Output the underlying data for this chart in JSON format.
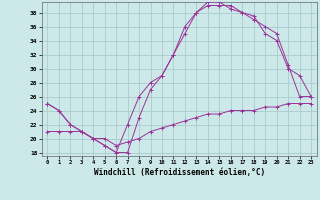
{
  "xlabel": "Windchill (Refroidissement éolien,°C)",
  "xlim": [
    0,
    23
  ],
  "ylim": [
    17.5,
    39.5
  ],
  "xticks": [
    0,
    1,
    2,
    3,
    4,
    5,
    6,
    7,
    8,
    9,
    10,
    11,
    12,
    13,
    14,
    15,
    16,
    17,
    18,
    19,
    20,
    21,
    22,
    23
  ],
  "yticks": [
    18,
    20,
    22,
    24,
    26,
    28,
    30,
    32,
    34,
    36,
    38
  ],
  "bg_color": "#cce8e8",
  "grid_color": "#aacccc",
  "line_color": "#993399",
  "line1_x": [
    0,
    1,
    2,
    3,
    4,
    5,
    6,
    7,
    8,
    9,
    10,
    11,
    12,
    13,
    14,
    15,
    16,
    17,
    18,
    19,
    20,
    21,
    22,
    23
  ],
  "line1_y": [
    25,
    24,
    22,
    21,
    20,
    19,
    18,
    18,
    23,
    27,
    29,
    32,
    35,
    38,
    39.5,
    39.5,
    38.5,
    38,
    37,
    36,
    35,
    30.5,
    26,
    26
  ],
  "line2_x": [
    0,
    1,
    2,
    3,
    4,
    5,
    6,
    7,
    8,
    9,
    10,
    11,
    12,
    13,
    14,
    15,
    16,
    17,
    18,
    19,
    20,
    21,
    22,
    23
  ],
  "line2_y": [
    21,
    21,
    21,
    21,
    20,
    20,
    19,
    19.5,
    20,
    21,
    21.5,
    22,
    22.5,
    23,
    23.5,
    23.5,
    24,
    24,
    24,
    24.5,
    24.5,
    25,
    25,
    25
  ],
  "line3_x": [
    0,
    1,
    2,
    3,
    4,
    5,
    6,
    7,
    8,
    9,
    10,
    11,
    12,
    13,
    14,
    15,
    16,
    17,
    18,
    19,
    20,
    21,
    22,
    23
  ],
  "line3_y": [
    25,
    24,
    22,
    21,
    20,
    19,
    18,
    22,
    26,
    28,
    29,
    32,
    36,
    38,
    39,
    39,
    39,
    38,
    37.5,
    35,
    34,
    30,
    29,
    26
  ]
}
